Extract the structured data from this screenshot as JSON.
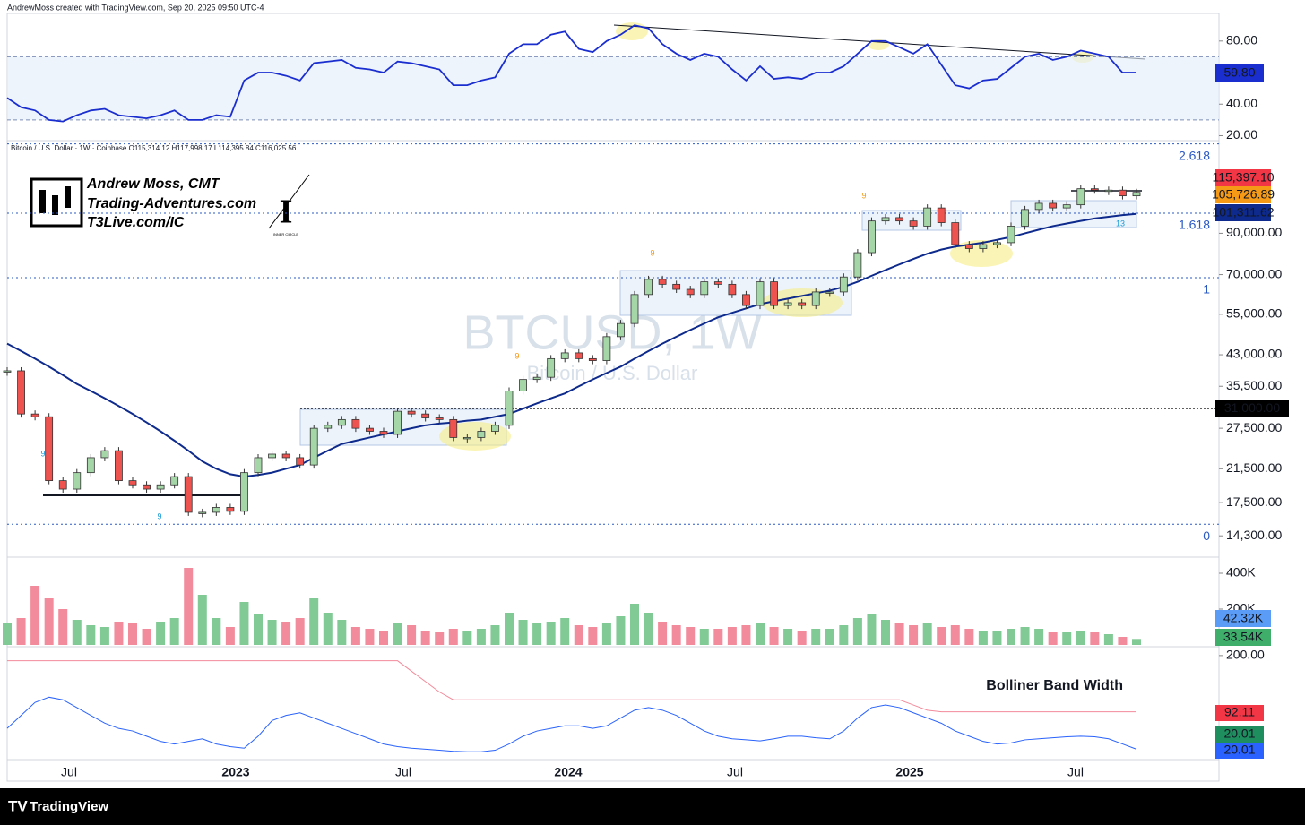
{
  "chart_data": {
    "type": "candlestick",
    "header": "AndrewMoss created with TradingView.com, Sep 20, 2025 09:50 UTC-4",
    "symbol_line": "Bitcoin / U.S. Dollar · 1W · Coinbase  O115,314.12  H117,998.17  L114,395.84  C116,025.56",
    "watermark": "BTCUSD, 1W",
    "watermark_sub": "Bitcoin / U.S. Dollar",
    "logo": {
      "name": "Andrew Moss, CMT",
      "site": "Trading-Adventures.com",
      "link": "T3Live.com/IC",
      "badge": "INNER CIRCLE"
    },
    "indicator_title": "Bolliner Band Width",
    "brand": "TradingView",
    "time_labels": [
      "Jul",
      "2023",
      "Jul",
      "2024",
      "Jul",
      "2025",
      "Jul"
    ],
    "td_counts": [
      9,
      9,
      9,
      9,
      9,
      13
    ],
    "price": [
      39000,
      30000,
      29500,
      20000,
      19000,
      21000,
      23000,
      24000,
      20000,
      19500,
      19000,
      19500,
      20500,
      16500,
      16500,
      17000,
      16600,
      21000,
      23000,
      23500,
      23000,
      22000,
      27500,
      28000,
      29000,
      27500,
      27000,
      26500,
      30500,
      30000,
      29300,
      29000,
      26000,
      26000,
      27000,
      28000,
      34500,
      37000,
      37500,
      42000,
      43500,
      42000,
      41500,
      48000,
      52000,
      62000,
      68000,
      66000,
      64000,
      62000,
      67000,
      66000,
      62000,
      58000,
      67000,
      58000,
      59000,
      58000,
      63000,
      63000,
      69000,
      80000,
      97000,
      99000,
      97000,
      94000,
      105000,
      96000,
      84000,
      82000,
      84000,
      85000,
      94000,
      104000,
      108000,
      105000,
      107000,
      118000,
      117000,
      117000,
      113000,
      115400
    ],
    "slow_ma": [
      46000,
      44000,
      42000,
      40000,
      38000,
      36000,
      34500,
      33000,
      31500,
      30000,
      28500,
      27000,
      25500,
      24000,
      22500,
      21500,
      20800,
      20500,
      20700,
      21000,
      21500,
      22000,
      23000,
      24000,
      25000,
      25500,
      26000,
      26500,
      27000,
      27500,
      28000,
      28300,
      28500,
      28800,
      29000,
      29500,
      30000,
      31000,
      32000,
      33000,
      34000,
      35500,
      37000,
      38500,
      40000,
      42000,
      44000,
      46000,
      48000,
      50000,
      52000,
      54000,
      55500,
      57000,
      58500,
      59500,
      60500,
      61500,
      62500,
      63500,
      65000,
      67000,
      69500,
      72000,
      74500,
      77000,
      79500,
      81500,
      83000,
      84000,
      85000,
      86500,
      88000,
      90000,
      92000,
      94000,
      95500,
      97000,
      98500,
      99500,
      100500,
      101300
    ],
    "ylim": [
      12700,
      155500
    ],
    "log_scale": true,
    "yticks": [
      {
        "value": 90000,
        "label": "90,000.00"
      },
      {
        "value": 70000,
        "label": "70,000.00"
      },
      {
        "value": 55000,
        "label": "55,000.00"
      },
      {
        "value": 43000,
        "label": "43,000.00"
      },
      {
        "value": 35500,
        "label": "35,500.00"
      },
      {
        "value": 27500,
        "label": "27,500.00"
      },
      {
        "value": 21500,
        "label": "21,500.00"
      },
      {
        "value": 17500,
        "label": "17,500.00"
      },
      {
        "value": 14300,
        "label": "14,300.00"
      }
    ],
    "fib": [
      {
        "level": 2.618,
        "price": 155020
      },
      {
        "level": 1.618,
        "price": 101670
      },
      {
        "level": 1,
        "price": 68700
      },
      {
        "level": 0,
        "price": 15350
      }
    ],
    "level_line": {
      "value": 31000,
      "label": "31,000.00"
    },
    "price_tags": [
      {
        "value": 115397.1,
        "label": "115,397.10",
        "color": "#f23645"
      },
      {
        "value": 105726.89,
        "label": "105,726.89",
        "color": "#f59a16"
      },
      {
        "value": 101311.62,
        "label": "101,311.62",
        "color": "#0d2a8c"
      }
    ],
    "rsi": [
      44,
      38,
      36,
      30,
      29,
      33,
      36,
      37,
      33,
      32,
      31,
      33,
      36,
      30,
      30,
      33,
      32,
      55,
      60,
      60,
      58,
      55,
      66,
      67,
      68,
      63,
      62,
      60,
      67,
      66,
      64,
      62,
      52,
      52,
      55,
      57,
      72,
      78,
      78,
      84,
      86,
      75,
      73,
      80,
      84,
      90,
      88,
      78,
      72,
      68,
      72,
      70,
      62,
      55,
      64,
      56,
      57,
      56,
      60,
      60,
      64,
      72,
      80,
      80,
      76,
      72,
      78,
      65,
      52,
      50,
      55,
      56,
      63,
      70,
      72,
      68,
      70,
      74,
      72,
      70,
      60,
      60
    ],
    "rsi_lim": [
      18,
      97.5
    ],
    "rsi_ticks": [
      {
        "value": 80,
        "label": "80.00"
      },
      {
        "value": 40,
        "label": "40.00"
      },
      {
        "value": 20,
        "label": "20.00"
      }
    ],
    "rsi_band": [
      30,
      70
    ],
    "rsi_tag": {
      "value": 59.8,
      "label": "59.80",
      "color": "#1a2ecf"
    },
    "volume": [
      120,
      150,
      330,
      260,
      200,
      140,
      110,
      100,
      130,
      120,
      90,
      130,
      150,
      430,
      280,
      150,
      100,
      240,
      170,
      140,
      130,
      150,
      260,
      180,
      140,
      100,
      90,
      80,
      120,
      110,
      80,
      70,
      90,
      80,
      90,
      110,
      180,
      140,
      120,
      130,
      150,
      110,
      100,
      120,
      160,
      230,
      180,
      130,
      110,
      100,
      90,
      90,
      100,
      110,
      120,
      100,
      90,
      80,
      90,
      90,
      110,
      150,
      170,
      140,
      120,
      110,
      120,
      100,
      110,
      90,
      80,
      80,
      90,
      100,
      90,
      70,
      70,
      80,
      70,
      60,
      45,
      33.54
    ],
    "volume_lim": [
      0,
      475
    ],
    "volume_ticks": [
      {
        "value": 400,
        "label": "400K"
      },
      {
        "value": 200,
        "label": "200K"
      }
    ],
    "volume_tags": [
      {
        "value": 42.32,
        "label": "42.32K",
        "color": "#5b9cf6"
      },
      {
        "value": 33.54,
        "label": "33.54K",
        "color": "#3fae6a"
      }
    ],
    "bbw": [
      60,
      85,
      110,
      120,
      115,
      100,
      85,
      70,
      60,
      55,
      45,
      35,
      30,
      35,
      40,
      30,
      25,
      22,
      45,
      75,
      85,
      90,
      80,
      70,
      60,
      50,
      40,
      30,
      25,
      22,
      20,
      18,
      16,
      15,
      15,
      18,
      30,
      45,
      55,
      60,
      65,
      65,
      60,
      65,
      80,
      95,
      100,
      95,
      85,
      70,
      55,
      45,
      40,
      38,
      36,
      40,
      45,
      45,
      42,
      40,
      55,
      80,
      100,
      105,
      100,
      90,
      80,
      70,
      55,
      45,
      35,
      30,
      32,
      38,
      40,
      42,
      44,
      45,
      44,
      40,
      30,
      20.01
    ],
    "bbw_high": [
      190,
      190,
      190,
      190,
      190,
      190,
      190,
      190,
      190,
      190,
      190,
      190,
      190,
      190,
      190,
      190,
      190,
      190,
      190,
      190,
      190,
      190,
      190,
      190,
      190,
      190,
      190,
      190,
      190,
      170,
      150,
      130,
      115,
      115,
      115,
      115,
      115,
      115,
      115,
      115,
      115,
      115,
      115,
      115,
      115,
      115,
      115,
      115,
      115,
      115,
      115,
      115,
      115,
      115,
      115,
      115,
      115,
      115,
      115,
      115,
      115,
      115,
      115,
      115,
      115,
      105,
      95,
      92,
      92,
      92,
      92,
      92,
      92,
      92,
      92,
      92,
      92,
      92,
      92,
      92,
      92,
      92
    ],
    "bbw_lim": [
      0,
      217
    ],
    "bbw_ticks": [
      {
        "value": 200,
        "label": "200.00"
      }
    ],
    "bbw_tags": [
      {
        "value": 92.11,
        "label": "92.11",
        "color": "#f23645"
      },
      {
        "value": 20.01,
        "label": "20.01",
        "color": "#1e8e5f"
      },
      {
        "value": 20.01,
        "label": "20.01",
        "color": "#2962ff"
      }
    ]
  }
}
